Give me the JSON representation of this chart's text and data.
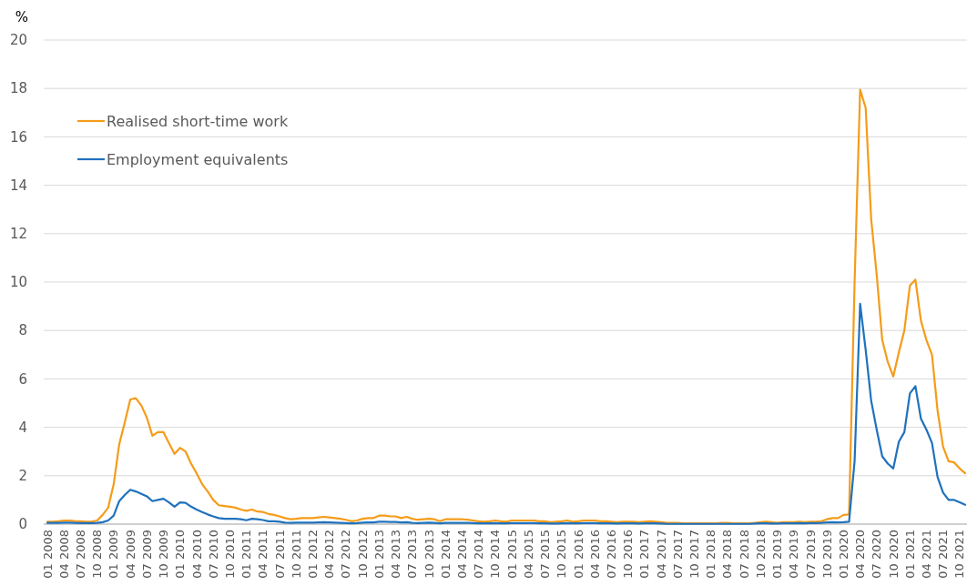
{
  "chart_data": {
    "type": "line",
    "ylabel": "%",
    "categories": [
      "01 2008",
      null,
      null,
      "04 2008",
      null,
      null,
      "07 2008",
      null,
      null,
      "10 2008",
      null,
      null,
      "01 2009",
      null,
      null,
      "04 2009",
      null,
      null,
      "07 2009",
      null,
      null,
      "10 2009",
      null,
      null,
      "01 2010",
      null,
      null,
      "04 2010",
      null,
      null,
      "07 2010",
      null,
      null,
      "10 2010",
      null,
      null,
      "01 2011",
      null,
      null,
      "04 2011",
      null,
      null,
      "07 2011",
      null,
      null,
      "10 2011",
      null,
      null,
      "01 2012",
      null,
      null,
      "04 2012",
      null,
      null,
      "07 2012",
      null,
      null,
      "10 2012",
      null,
      null,
      "01 2013",
      null,
      null,
      "04 2013",
      null,
      null,
      "07 2013",
      null,
      null,
      "10 2013",
      null,
      null,
      "01 2014",
      null,
      null,
      "04 2014",
      null,
      null,
      "07 2014",
      null,
      null,
      "10 2014",
      null,
      null,
      "01 2015",
      null,
      null,
      "04 2015",
      null,
      null,
      "07 2015",
      null,
      null,
      "10 2015",
      null,
      null,
      "01 2016",
      null,
      null,
      "04 2016",
      null,
      null,
      "07 2016",
      null,
      null,
      "10 2016",
      null,
      null,
      "01 2017",
      null,
      null,
      "04 2017",
      null,
      null,
      "07 2017",
      null,
      null,
      "10 2017",
      null,
      null,
      "01 2018",
      null,
      null,
      "04 2018",
      null,
      null,
      "07 2018",
      null,
      null,
      "10 2018",
      null,
      null,
      "01 2019",
      null,
      null,
      "04 2019",
      null,
      null,
      "07 2019",
      null,
      null,
      "10 2019",
      null,
      null,
      "01 2020",
      null,
      null,
      "04 2020",
      null,
      null,
      "07 2020",
      null,
      null,
      "10 2020",
      null,
      null,
      "01 2021",
      null,
      null,
      "04 2021",
      null,
      null,
      "07 2021",
      null,
      null,
      "10 2021",
      null
    ],
    "series": [
      {
        "name": "Realised short-time work",
        "color": "#f59c1a",
        "values": [
          0.1,
          0.1,
          0.12,
          0.15,
          0.15,
          0.13,
          0.12,
          0.1,
          0.1,
          0.15,
          0.38,
          0.68,
          1.65,
          3.3,
          4.2,
          5.15,
          5.2,
          4.9,
          4.4,
          3.65,
          3.8,
          3.8,
          3.35,
          2.9,
          3.15,
          3.0,
          2.5,
          2.1,
          1.65,
          1.35,
          1.0,
          0.78,
          0.75,
          0.72,
          0.68,
          0.6,
          0.55,
          0.6,
          0.52,
          0.5,
          0.42,
          0.38,
          0.32,
          0.25,
          0.2,
          0.22,
          0.25,
          0.25,
          0.25,
          0.28,
          0.3,
          0.28,
          0.25,
          0.22,
          0.18,
          0.12,
          0.15,
          0.22,
          0.25,
          0.25,
          0.35,
          0.35,
          0.32,
          0.32,
          0.25,
          0.3,
          0.22,
          0.18,
          0.2,
          0.22,
          0.2,
          0.12,
          0.2,
          0.2,
          0.2,
          0.2,
          0.18,
          0.15,
          0.12,
          0.1,
          0.12,
          0.15,
          0.12,
          0.1,
          0.15,
          0.15,
          0.15,
          0.15,
          0.15,
          0.12,
          0.12,
          0.08,
          0.1,
          0.12,
          0.15,
          0.1,
          0.12,
          0.15,
          0.15,
          0.15,
          0.12,
          0.12,
          0.1,
          0.08,
          0.1,
          0.1,
          0.1,
          0.08,
          0.1,
          0.12,
          0.1,
          0.08,
          0.05,
          0.05,
          0.05,
          0.03,
          0.03,
          0.03,
          0.03,
          0.03,
          0.03,
          0.03,
          0.05,
          0.05,
          0.03,
          0.03,
          0.03,
          0.03,
          0.05,
          0.08,
          0.1,
          0.08,
          0.05,
          0.08,
          0.08,
          0.08,
          0.1,
          0.08,
          0.1,
          0.1,
          0.12,
          0.2,
          0.25,
          0.25,
          0.38,
          0.4,
          10,
          17.95,
          17.2,
          12.6,
          10.3,
          7.6,
          6.7,
          6.1,
          7.1,
          8.0,
          9.85,
          10.1,
          8.4,
          7.6,
          7.0,
          4.7,
          3.2,
          2.6,
          2.55,
          2.3,
          2.1
        ]
      },
      {
        "name": "Employment equivalents",
        "color": "#1f72bd",
        "values": [
          0.05,
          0.05,
          0.05,
          0.06,
          0.06,
          0.05,
          0.04,
          0.04,
          0.04,
          0.05,
          0.08,
          0.15,
          0.35,
          0.95,
          1.2,
          1.42,
          1.35,
          1.25,
          1.15,
          0.95,
          1.0,
          1.05,
          0.9,
          0.72,
          0.9,
          0.88,
          0.72,
          0.6,
          0.5,
          0.4,
          0.32,
          0.25,
          0.22,
          0.22,
          0.22,
          0.2,
          0.16,
          0.22,
          0.2,
          0.17,
          0.12,
          0.12,
          0.1,
          0.06,
          0.05,
          0.06,
          0.06,
          0.06,
          0.06,
          0.07,
          0.08,
          0.07,
          0.06,
          0.05,
          0.04,
          0.03,
          0.04,
          0.06,
          0.07,
          0.07,
          0.1,
          0.1,
          0.09,
          0.09,
          0.07,
          0.08,
          0.05,
          0.04,
          0.05,
          0.06,
          0.05,
          0.03,
          0.05,
          0.05,
          0.05,
          0.05,
          0.05,
          0.04,
          0.03,
          0.03,
          0.03,
          0.04,
          0.03,
          0.03,
          0.04,
          0.04,
          0.04,
          0.04,
          0.04,
          0.03,
          0.03,
          0.02,
          0.02,
          0.03,
          0.04,
          0.03,
          0.03,
          0.04,
          0.04,
          0.04,
          0.03,
          0.03,
          0.03,
          0.02,
          0.03,
          0.03,
          0.03,
          0.02,
          0.03,
          0.03,
          0.03,
          0.02,
          0.01,
          0.01,
          0.01,
          0.01,
          0.01,
          0.01,
          0.01,
          0.01,
          0.01,
          0.01,
          0.01,
          0.01,
          0.01,
          0.01,
          0.01,
          0.01,
          0.02,
          0.03,
          0.03,
          0.02,
          0.02,
          0.03,
          0.03,
          0.03,
          0.04,
          0.03,
          0.04,
          0.04,
          0.05,
          0.07,
          0.08,
          0.07,
          0.08,
          0.1,
          2.6,
          9.1,
          7.2,
          5.1,
          3.9,
          2.8,
          2.5,
          2.3,
          3.4,
          3.8,
          5.4,
          5.7,
          4.35,
          3.9,
          3.35,
          1.95,
          1.3,
          1.0,
          1.0,
          0.9,
          0.8
        ]
      }
    ],
    "ylim": [
      0,
      20
    ],
    "yticks": [
      0,
      2,
      4,
      6,
      8,
      10,
      12,
      14,
      16,
      18,
      20
    ],
    "grid": "y",
    "legend": "top left"
  }
}
